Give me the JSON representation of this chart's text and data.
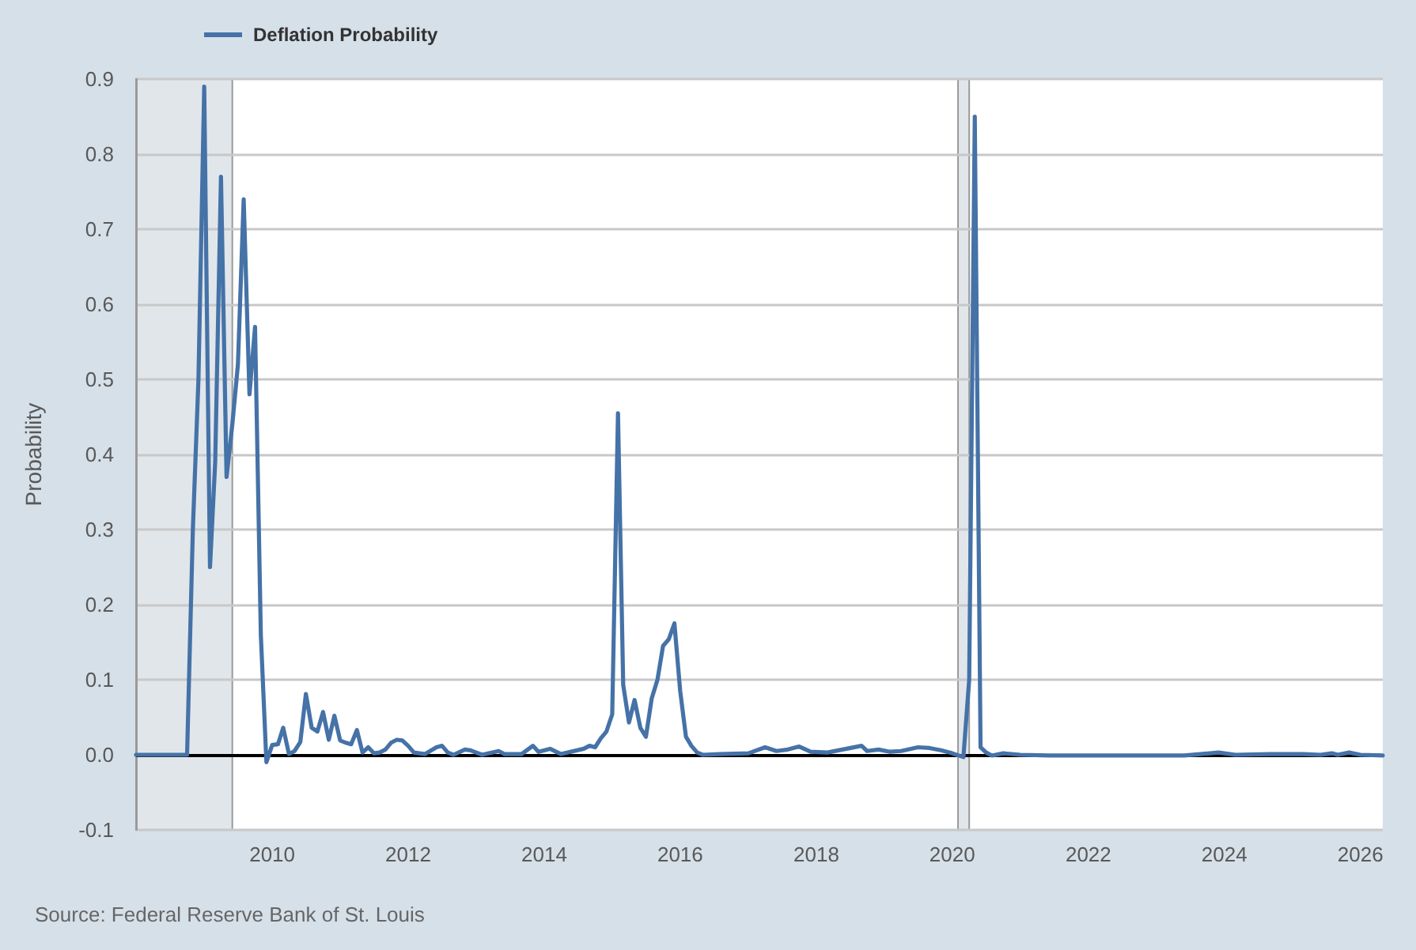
{
  "chart_data": {
    "type": "line",
    "ylabel": "Probability",
    "annotations": [
      "Source: Federal Reserve Bank of St. Louis"
    ],
    "x": [
      "2008-01",
      "2008-10",
      "2008-11",
      "2008-12",
      "2009-01",
      "2009-02",
      "2009-03",
      "2009-04",
      "2009-05",
      "2009-06",
      "2009-07",
      "2009-08",
      "2009-09",
      "2009-10",
      "2009-11",
      "2009-12",
      "2010-01",
      "2010-02",
      "2010-03",
      "2010-04",
      "2010-05",
      "2010-06",
      "2010-07",
      "2010-08",
      "2010-09",
      "2010-10",
      "2010-11",
      "2010-12",
      "2011-01",
      "2011-02",
      "2011-03",
      "2011-04",
      "2011-05",
      "2011-06",
      "2011-07",
      "2011-08",
      "2011-09",
      "2011-10",
      "2011-11",
      "2011-12",
      "2012-01",
      "2012-02",
      "2012-04",
      "2012-06",
      "2012-07",
      "2012-08",
      "2012-09",
      "2012-11",
      "2012-12",
      "2013-02",
      "2013-05",
      "2013-06",
      "2013-09",
      "2013-11",
      "2013-12",
      "2014-02",
      "2014-04",
      "2014-08",
      "2014-09",
      "2014-10",
      "2014-11",
      "2014-12",
      "2015-01",
      "2015-02",
      "2015-03",
      "2015-04",
      "2015-05",
      "2015-06",
      "2015-07",
      "2015-08",
      "2015-09",
      "2015-10",
      "2015-11",
      "2015-12",
      "2016-01",
      "2016-02",
      "2016-03",
      "2016-04",
      "2016-05",
      "2016-08",
      "2017-01",
      "2017-04",
      "2017-06",
      "2017-08",
      "2017-10",
      "2017-12",
      "2018-03",
      "2018-09",
      "2018-10",
      "2018-12",
      "2019-02",
      "2019-04",
      "2019-07",
      "2019-09",
      "2019-11",
      "2020-01",
      "2020-03",
      "2020-04",
      "2020-05",
      "2020-06",
      "2020-07",
      "2020-08",
      "2020-10",
      "2021-01",
      "2021-06",
      "2022-06",
      "2023-06",
      "2023-12",
      "2024-03",
      "2024-09",
      "2025-03",
      "2025-06",
      "2025-08",
      "2025-09",
      "2025-11",
      "2026-01",
      "2026-05"
    ],
    "series": [
      {
        "name": "Deflation Probability",
        "color": "#4572a7",
        "values": [
          0,
          0,
          0.3,
          0.5,
          0.89,
          0.25,
          0.39,
          0.77,
          0.37,
          0.44,
          0.52,
          0.74,
          0.48,
          0.57,
          0.16,
          -0.01,
          0.013,
          0.014,
          0.036,
          0.001,
          0.005,
          0.017,
          0.081,
          0.036,
          0.031,
          0.057,
          0.02,
          0.052,
          0.019,
          0.016,
          0.014,
          0.033,
          0.003,
          0.01,
          0.002,
          0.003,
          0.007,
          0.016,
          0.02,
          0.019,
          0.012,
          0.003,
          0.001,
          0.01,
          0.012,
          0.003,
          0,
          0.007,
          0.006,
          0,
          0.005,
          0.001,
          0.001,
          0.012,
          0.004,
          0.008,
          0.001,
          0.008,
          0.012,
          0.01,
          0.022,
          0.031,
          0.054,
          0.455,
          0.093,
          0.043,
          0.073,
          0.036,
          0.024,
          0.075,
          0.1,
          0.145,
          0.154,
          0.175,
          0.085,
          0.024,
          0.012,
          0.003,
          0,
          0.001,
          0.002,
          0.01,
          0.005,
          0.007,
          0.011,
          0.004,
          0.003,
          0.012,
          0.005,
          0.007,
          0.004,
          0.005,
          0.01,
          0.009,
          0.006,
          0.002,
          -0.003,
          0.1,
          0.85,
          0.01,
          0.003,
          -0.001,
          0.002,
          0,
          -0.001,
          -0.001,
          -0.001,
          0.003,
          0,
          0.001,
          0.001,
          0,
          0.002,
          0,
          0.003,
          0,
          -0.001
        ]
      }
    ],
    "xlim": [
      "2008-01",
      "2026-05"
    ],
    "xticks": [
      "2010",
      "2012",
      "2014",
      "2016",
      "2018",
      "2020",
      "2022",
      "2024",
      "2026"
    ],
    "ylim": [
      -0.1,
      0.9
    ],
    "yticks": [
      -0.1,
      {
        "value": 0,
        "label": "0.0"
      },
      0.1,
      0.2,
      0.3,
      0.4,
      0.5,
      0.6,
      0.7,
      0.8,
      0.9
    ],
    "bands": [
      {
        "axis": "x",
        "from": "2008-01",
        "to": "2009-06",
        "color": "#e1e6eb"
      },
      {
        "axis": "x",
        "from": "2020-02",
        "to": "2020-04",
        "color": "#e1e6eb"
      }
    ],
    "ref_lines": [
      {
        "axis": "y",
        "value": 0,
        "color": "#000000"
      }
    ],
    "grid": "y",
    "legend": "top left",
    "marker": "none",
    "line_style": "solid"
  }
}
